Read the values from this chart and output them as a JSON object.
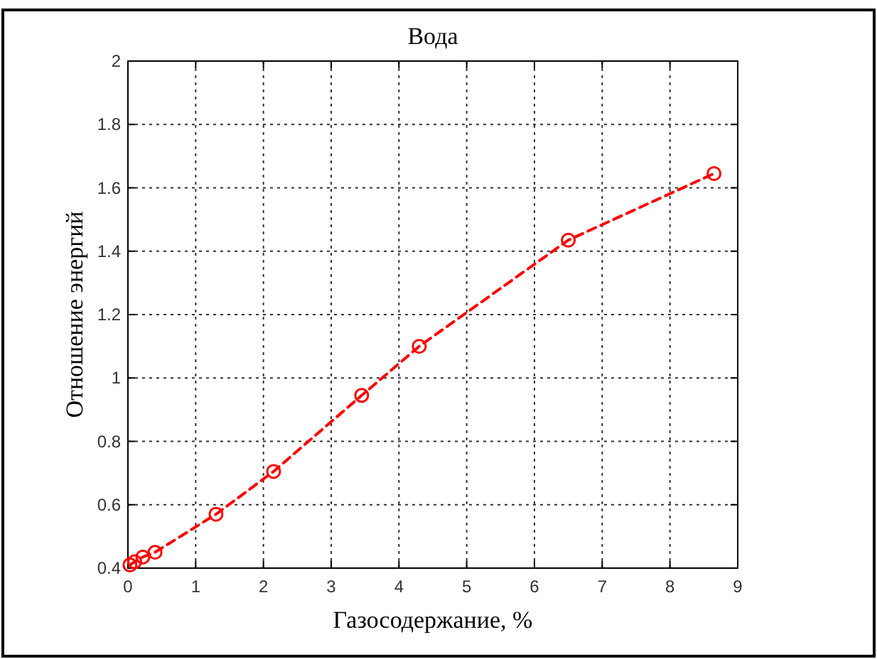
{
  "chart_data": {
    "type": "line",
    "title": "Вода",
    "xlabel": "Газосодержание, %",
    "ylabel": "Отношение энергий",
    "x": [
      0.03,
      0.1,
      0.22,
      0.4,
      1.3,
      2.15,
      3.45,
      4.3,
      6.5,
      8.65
    ],
    "series": [
      {
        "color": "#ff0000",
        "values": [
          0.41,
          0.42,
          0.435,
          0.45,
          0.57,
          0.705,
          0.945,
          1.1,
          1.435,
          1.645
        ]
      }
    ],
    "xlim": [
      0,
      9
    ],
    "xticks": [
      0,
      1,
      2,
      3,
      4,
      5,
      6,
      7,
      8,
      9
    ],
    "ylim": [
      0.4,
      2
    ],
    "yticks": [
      0.4,
      0.6,
      0.8,
      1,
      1.2,
      1.4,
      1.6,
      1.8,
      2
    ],
    "grid": true,
    "marker": "circle",
    "line_style": "dashed"
  }
}
